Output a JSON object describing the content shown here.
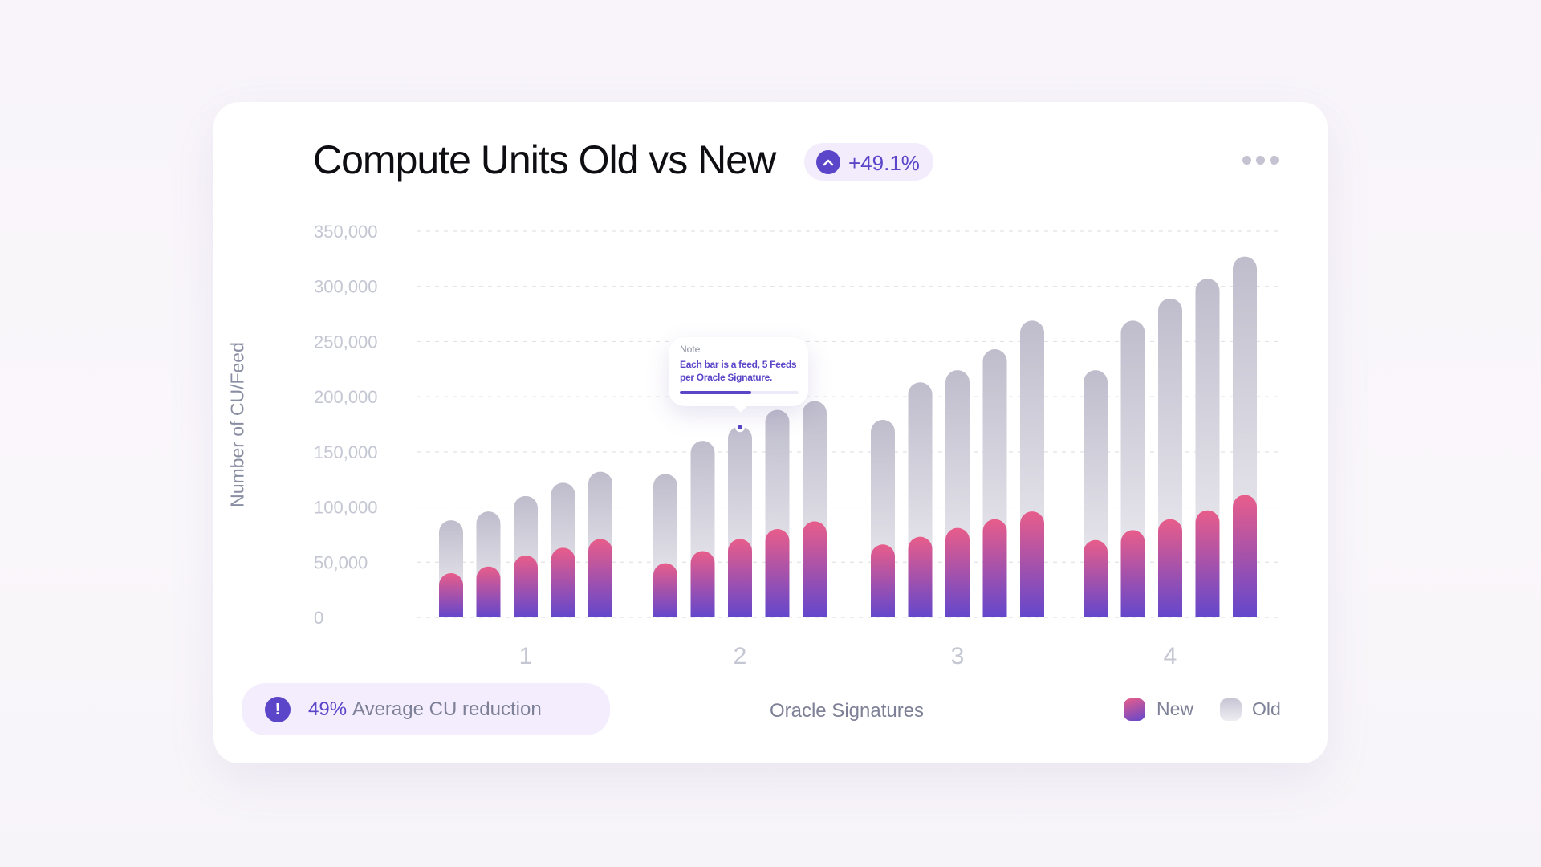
{
  "header": {
    "title": "Compute Units Old vs New",
    "badge": {
      "value": "+49.1%",
      "icon": "chevron-up-icon"
    },
    "menu_icon": "more-horizontal-icon"
  },
  "tooltip": {
    "label": "Note",
    "text": "Each bar is a feed, 5 Feeds per Oracle Signature.",
    "progress": 0.6
  },
  "footer": {
    "info_icon": "exclamation-icon",
    "highlight": "49%",
    "text": "Average CU reduction"
  },
  "colors": {
    "accent": "#5b45c8",
    "new_top": "#e85d8a",
    "new_bottom": "#6347cc",
    "old_top": "#bfbdcc",
    "old_bottom": "#efeef3"
  },
  "chart_data": {
    "type": "bar",
    "title": "Compute Units Old vs New",
    "xlabel": "Oracle Signatures",
    "ylabel": "Number of CU/Feed",
    "ylim": [
      0,
      350000
    ],
    "yticks": [
      "0",
      "50,000",
      "100,000",
      "150,000",
      "200,000",
      "250,000",
      "300,000",
      "350,000"
    ],
    "categories": [
      "1",
      "2",
      "3",
      "4"
    ],
    "grid": true,
    "legend": "bottom-right",
    "series": [
      {
        "name": "New",
        "values": [
          [
            40000,
            46000,
            56000,
            63000,
            71000
          ],
          [
            49000,
            60000,
            71000,
            80000,
            87000
          ],
          [
            66000,
            73000,
            81000,
            89000,
            96000
          ],
          [
            70000,
            79000,
            89000,
            97000,
            111000
          ]
        ]
      },
      {
        "name": "Old",
        "values": [
          [
            88000,
            96000,
            110000,
            122000,
            132000
          ],
          [
            130000,
            160000,
            173000,
            188000,
            196000
          ],
          [
            179000,
            213000,
            224000,
            243000,
            269000
          ],
          [
            224000,
            269000,
            289000,
            307000,
            327000
          ]
        ]
      }
    ]
  }
}
